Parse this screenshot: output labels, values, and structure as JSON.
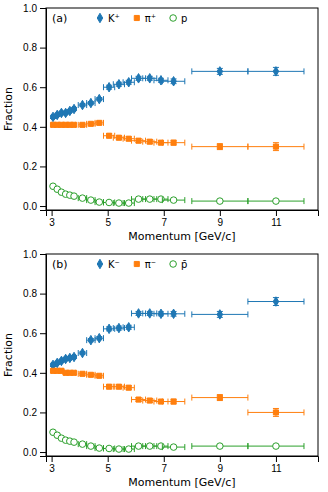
{
  "chart_data": [
    {
      "type": "scatter",
      "title": "(a)",
      "xlabel": "Momentum [GeV/c]",
      "ylabel": "Fraction",
      "xlim": [
        2.8,
        12.5
      ],
      "ylim": [
        -0.02,
        1.0
      ],
      "xticks": [
        3,
        5,
        7,
        9,
        11
      ],
      "yticks": [
        {
          "value": 0.0,
          "label": "0.0"
        },
        0.2,
        0.4,
        0.6,
        0.8,
        {
          "value": 1.0,
          "label": "1.0"
        }
      ],
      "grid": false,
      "legend": "top",
      "x": [
        3.05,
        3.2,
        3.35,
        3.5,
        3.65,
        3.8,
        4.1,
        4.4,
        4.7,
        5.05,
        5.4,
        5.75,
        6.1,
        6.5,
        6.9,
        7.35,
        9.0,
        11.0
      ],
      "series": [
        {
          "name": "K⁺",
          "marker": "diamond",
          "values": [
            0.45,
            0.46,
            0.47,
            0.47,
            0.48,
            0.49,
            0.51,
            0.52,
            0.54,
            0.6,
            0.615,
            0.625,
            0.645,
            0.645,
            0.635,
            0.63,
            0.68,
            0.68
          ],
          "xerr": [
            0.05,
            0.05,
            0.05,
            0.05,
            0.05,
            0.05,
            0.15,
            0.15,
            0.15,
            0.2,
            0.2,
            0.2,
            0.25,
            0.25,
            0.25,
            0.4,
            1.0,
            1.0
          ],
          "yerr": [
            0.008,
            0.008,
            0.008,
            0.008,
            0.008,
            0.008,
            0.008,
            0.008,
            0.008,
            0.01,
            0.01,
            0.01,
            0.01,
            0.01,
            0.01,
            0.012,
            0.015,
            0.02
          ]
        },
        {
          "name": "π⁺",
          "marker": "square",
          "values": [
            0.41,
            0.41,
            0.41,
            0.41,
            0.41,
            0.41,
            0.41,
            0.415,
            0.42,
            0.355,
            0.345,
            0.34,
            0.33,
            0.325,
            0.32,
            0.32,
            0.3,
            0.3
          ],
          "xerr": [
            0.05,
            0.05,
            0.05,
            0.05,
            0.05,
            0.05,
            0.15,
            0.15,
            0.15,
            0.2,
            0.2,
            0.2,
            0.25,
            0.25,
            0.25,
            0.4,
            1.0,
            1.0
          ],
          "yerr": [
            0.008,
            0.008,
            0.008,
            0.008,
            0.008,
            0.008,
            0.008,
            0.008,
            0.008,
            0.01,
            0.01,
            0.01,
            0.01,
            0.01,
            0.01,
            0.012,
            0.015,
            0.02
          ]
        },
        {
          "name": "p",
          "marker": "open-circle",
          "values": [
            0.1,
            0.085,
            0.07,
            0.06,
            0.055,
            0.05,
            0.04,
            0.03,
            0.02,
            0.018,
            0.015,
            0.015,
            0.035,
            0.035,
            0.035,
            0.03,
            0.025,
            0.025
          ],
          "xerr": [
            0.05,
            0.05,
            0.05,
            0.05,
            0.05,
            0.05,
            0.15,
            0.15,
            0.15,
            0.2,
            0.2,
            0.2,
            0.25,
            0.25,
            0.25,
            0.4,
            1.0,
            1.0
          ],
          "yerr": [
            0.005,
            0.005,
            0.005,
            0.005,
            0.005,
            0.005,
            0.005,
            0.005,
            0.005,
            0.005,
            0.005,
            0.005,
            0.005,
            0.005,
            0.005,
            0.005,
            0.008,
            0.008
          ]
        }
      ]
    },
    {
      "type": "scatter",
      "title": "(b)",
      "xlabel": "Momentum [GeV/c]",
      "ylabel": "Fraction",
      "xlim": [
        2.8,
        12.5
      ],
      "ylim": [
        -0.02,
        1.0
      ],
      "xticks": [
        3,
        5,
        7,
        9,
        11
      ],
      "yticks": [
        {
          "value": 0.0,
          "label": "0.0"
        },
        0.2,
        0.4,
        0.6,
        0.8,
        {
          "value": 1.0,
          "label": "1.0"
        }
      ],
      "grid": false,
      "legend": "top",
      "x": [
        3.05,
        3.2,
        3.35,
        3.5,
        3.65,
        3.8,
        4.1,
        4.4,
        4.7,
        5.05,
        5.4,
        5.75,
        6.1,
        6.5,
        6.9,
        7.35,
        9.0,
        11.0
      ],
      "series": [
        {
          "name": "K⁻",
          "marker": "diamond",
          "values": [
            0.44,
            0.45,
            0.46,
            0.47,
            0.475,
            0.48,
            0.5,
            0.565,
            0.575,
            0.622,
            0.626,
            0.63,
            0.7,
            0.7,
            0.698,
            0.698,
            0.695,
            0.76
          ],
          "xerr": [
            0.05,
            0.05,
            0.05,
            0.05,
            0.05,
            0.05,
            0.15,
            0.15,
            0.15,
            0.2,
            0.2,
            0.2,
            0.25,
            0.25,
            0.25,
            0.4,
            1.0,
            1.0
          ],
          "yerr": [
            0.008,
            0.008,
            0.008,
            0.008,
            0.008,
            0.008,
            0.008,
            0.008,
            0.008,
            0.01,
            0.01,
            0.01,
            0.01,
            0.01,
            0.01,
            0.012,
            0.015,
            0.02
          ]
        },
        {
          "name": "π⁻",
          "marker": "square",
          "values": [
            0.41,
            0.41,
            0.41,
            0.4,
            0.4,
            0.4,
            0.395,
            0.39,
            0.385,
            0.33,
            0.33,
            0.325,
            0.265,
            0.26,
            0.255,
            0.255,
            0.275,
            0.2
          ],
          "xerr": [
            0.05,
            0.05,
            0.05,
            0.05,
            0.05,
            0.05,
            0.15,
            0.15,
            0.15,
            0.2,
            0.2,
            0.2,
            0.25,
            0.25,
            0.25,
            0.4,
            1.0,
            1.0
          ],
          "yerr": [
            0.008,
            0.008,
            0.008,
            0.008,
            0.008,
            0.008,
            0.008,
            0.008,
            0.008,
            0.01,
            0.01,
            0.01,
            0.01,
            0.01,
            0.01,
            0.012,
            0.015,
            0.02
          ]
        },
        {
          "name": "p̄",
          "marker": "open-circle",
          "values": [
            0.1,
            0.085,
            0.07,
            0.06,
            0.055,
            0.05,
            0.04,
            0.03,
            0.02,
            0.018,
            0.015,
            0.015,
            0.03,
            0.03,
            0.03,
            0.025,
            0.03,
            0.03
          ],
          "xerr": [
            0.05,
            0.05,
            0.05,
            0.05,
            0.05,
            0.05,
            0.15,
            0.15,
            0.15,
            0.2,
            0.2,
            0.2,
            0.25,
            0.25,
            0.25,
            0.4,
            1.0,
            1.0
          ],
          "yerr": [
            0.005,
            0.005,
            0.005,
            0.005,
            0.005,
            0.005,
            0.005,
            0.005,
            0.005,
            0.005,
            0.005,
            0.005,
            0.005,
            0.005,
            0.005,
            0.005,
            0.008,
            0.008
          ]
        }
      ]
    }
  ]
}
